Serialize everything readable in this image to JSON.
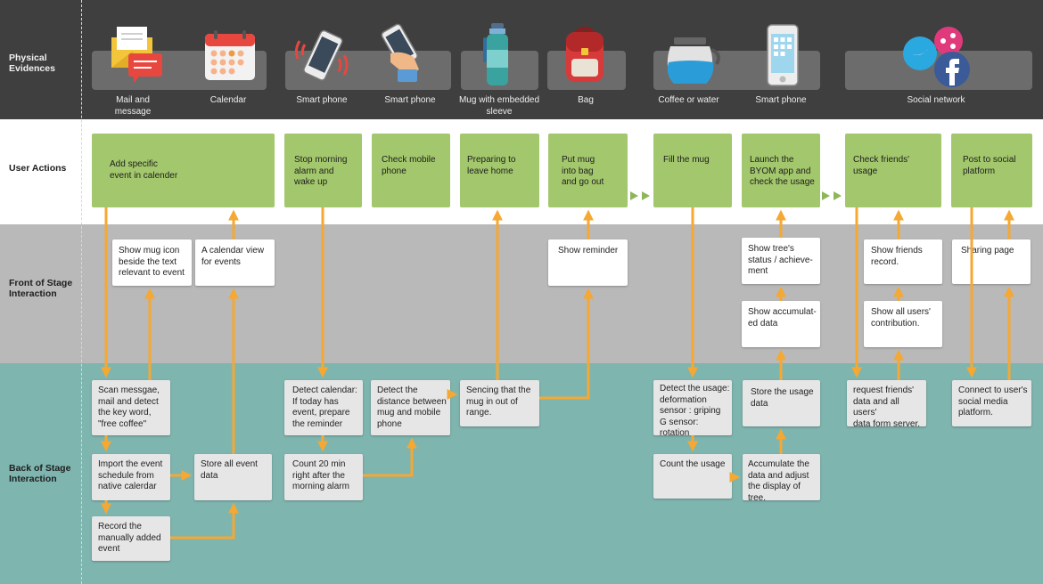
{
  "rows": {
    "physical_evidences": "Physical\nEvidences",
    "user_actions": "User Actions",
    "front_of_stage": "Front of Stage\nInteraction",
    "back_of_stage": "Back of Stage\nInteraction"
  },
  "evidences": [
    {
      "label": "Mail and\nmessage",
      "icon": "mail-icon"
    },
    {
      "label": "Calendar",
      "icon": "calendar-icon"
    },
    {
      "label": "Smart phone",
      "icon": "smartphone-ringing-icon"
    },
    {
      "label": "Smart phone",
      "icon": "hand-smartphone-icon"
    },
    {
      "label": "Mug with embedded\nsleeve",
      "icon": "bottle-icon"
    },
    {
      "label": "Bag",
      "icon": "backpack-icon"
    },
    {
      "label": "Coffee or water",
      "icon": "coffee-pot-icon"
    },
    {
      "label": "Smart phone",
      "icon": "smartphone-icon"
    },
    {
      "label": "Social network",
      "icon": "social-network-icon"
    }
  ],
  "user_actions": [
    "Add specific\nevent in calender",
    "Stop morning\nalarm and\nwake up",
    "Check mobile\nphone",
    "Preparing to\nleave home",
    "Put mug\ninto bag\nand go out",
    "Fill the mug",
    "Launch the\nBYOM app and\ncheck the usage",
    "Check friends'\nusage",
    "Post to social\nplatform"
  ],
  "front_stage": {
    "mug_icon": "Show mug icon\nbeside the text\nrelevant to event",
    "calendar_view": "A calendar view\nfor events",
    "reminder": "Show reminder",
    "tree_status": "Show tree's\nstatus / achieve-\nment",
    "accumulated": "Show accumulat-\ned data",
    "friends_record": "Show friends\nrecord.",
    "all_users": "Show all users'\ncontribution.",
    "sharing": "Sharing page"
  },
  "back_stage": {
    "scan": "Scan messgae,\nmail and detect\nthe key word,\n\"free coffee\"",
    "import": "Import the event\nschedule from\nnative calerdar",
    "store_event": "Store all event\ndata",
    "record": "Record the\nmanually added\nevent",
    "detect_calendar": "Detect calendar:\nIf today has\nevent, prepare\nthe reminder",
    "count_20": "Count 20 min\nright after the\nmorning alarm",
    "detect_distance": "Detect the\ndistance between\nmug and mobile\nphone",
    "sensing": "Sencing that the\nmug in out of\nrange.",
    "detect_usage": "Detect the usage:\ndeformation\nsensor : griping\nG sensor: rotation",
    "count_usage": "Count the usage",
    "store_usage": "Store the usage\ndata",
    "accumulate": "Accumulate the\ndata and adjust\nthe display of tree.",
    "request": "request friends'\ndata and all users'\ndata form server.",
    "connect": "Connect to user's\nsocial media\nplatform."
  },
  "colors": {
    "physical_band": "#3f3f3f",
    "front_band": "#b9b9b9",
    "back_band": "#7fb5af",
    "action_green": "#a3c76c",
    "arrow_orange": "#f5a833"
  }
}
